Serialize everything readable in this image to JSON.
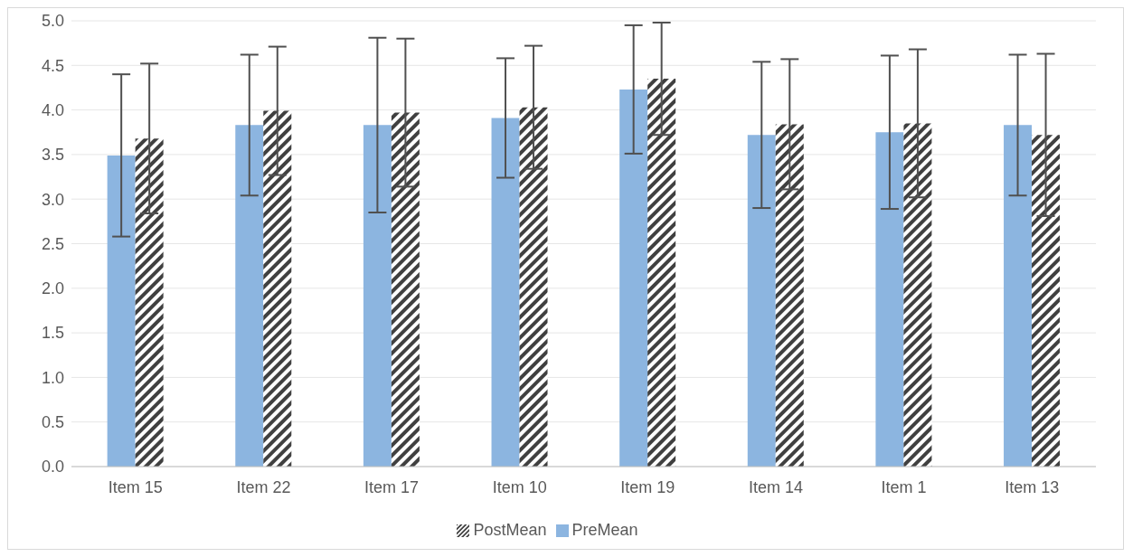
{
  "chart_data": {
    "type": "bar",
    "categories": [
      "Item 15",
      "Item 22",
      "Item 17",
      "Item 10",
      "Item 19",
      "Item 14",
      "Item 1",
      "Item 13"
    ],
    "series": [
      {
        "name": "PreMean",
        "color": "#8cb5e0",
        "values": [
          3.49,
          3.83,
          3.83,
          3.91,
          4.23,
          3.72,
          3.75,
          3.83
        ],
        "errors": [
          0.91,
          0.79,
          0.98,
          0.67,
          0.72,
          0.82,
          0.86,
          0.79
        ]
      },
      {
        "name": "PostMean",
        "color": "#404040",
        "values": [
          3.68,
          3.99,
          3.97,
          4.03,
          4.35,
          3.84,
          3.85,
          3.72
        ],
        "errors": [
          0.84,
          0.72,
          0.83,
          0.69,
          0.63,
          0.73,
          0.83,
          0.91
        ]
      }
    ],
    "ylim": [
      0,
      5
    ],
    "yticks": [
      {
        "value": 0,
        "label": "0.0"
      },
      {
        "value": 0.5,
        "label": "0.5"
      },
      {
        "value": 1,
        "label": "1.0"
      },
      {
        "value": 1.5,
        "label": "1.5"
      },
      {
        "value": 2,
        "label": "2.0"
      },
      {
        "value": 2.5,
        "label": "2.5"
      },
      {
        "value": 3,
        "label": "3.0"
      },
      {
        "value": 3.5,
        "label": "3.5"
      },
      {
        "value": 4,
        "label": "4.0"
      },
      {
        "value": 4.5,
        "label": "4.5"
      },
      {
        "value": 5,
        "label": "5.0"
      }
    ],
    "grid": "y",
    "legend": "bottom"
  }
}
